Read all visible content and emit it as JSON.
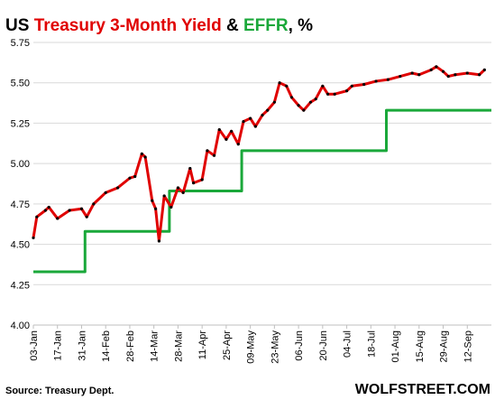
{
  "chart_data": {
    "type": "line",
    "title": [
      {
        "text": "US ",
        "color": "#000000"
      },
      {
        "text": "Treasury 3-Month  Yield",
        "color": "#e00000"
      },
      {
        "text": " & ",
        "color": "#000000"
      },
      {
        "text": "EFFR",
        "color": "#1aa83a"
      },
      {
        "text": ", %",
        "color": "#000000"
      }
    ],
    "source": "Source: Treasury Dept.",
    "watermark": "WOLFSTREET.COM",
    "xlim": [
      "03-Jan",
      "26-Sep"
    ],
    "xticks": [
      "03-Jan",
      "17-Jan",
      "31-Jan",
      "14-Feb",
      "28-Feb",
      "14-Mar",
      "28-Mar",
      "11-Apr",
      "25-Apr",
      "09-May",
      "23-May",
      "06-Jun",
      "20-Jun",
      "04-Jul",
      "18-Jul",
      "01-Aug",
      "15-Aug",
      "29-Aug",
      "12-Sep"
    ],
    "ylim": [
      4.0,
      5.75
    ],
    "yticks": [
      {
        "value": 4.0,
        "label": "4.00"
      },
      {
        "value": 4.25,
        "label": "4.25"
      },
      {
        "value": 4.5,
        "label": "4.50"
      },
      {
        "value": 4.75,
        "label": "4.75"
      },
      {
        "value": 5.0,
        "label": "5.00"
      },
      {
        "value": 5.25,
        "label": "5.25"
      },
      {
        "value": 5.5,
        "label": "5.50"
      },
      {
        "value": 5.75,
        "label": "5.75"
      }
    ],
    "grid": true,
    "series": [
      {
        "color": "#1aa83a",
        "step": true,
        "markers": false,
        "x": [
          "03-Jan",
          "02-Feb",
          "23-Mar",
          "04-May",
          "27-Jul",
          "26-Sep"
        ],
        "values": [
          4.33,
          4.58,
          4.83,
          5.08,
          5.33,
          5.33
        ]
      },
      {
        "color": "#e00000",
        "step": false,
        "markers": true,
        "x": [
          "03-Jan",
          "05-Jan",
          "10-Jan",
          "12-Jan",
          "17-Jan",
          "24-Jan",
          "31-Jan",
          "03-Feb",
          "07-Feb",
          "14-Feb",
          "21-Feb",
          "28-Feb",
          "03-Mar",
          "07-Mar",
          "09-Mar",
          "13-Mar",
          "15-Mar",
          "17-Mar",
          "20-Mar",
          "24-Mar",
          "28-Mar",
          "31-Mar",
          "04-Apr",
          "06-Apr",
          "11-Apr",
          "14-Apr",
          "18-Apr",
          "21-Apr",
          "25-Apr",
          "28-Apr",
          "02-May",
          "05-May",
          "09-May",
          "12-May",
          "16-May",
          "19-May",
          "23-May",
          "26-May",
          "30-May",
          "02-Jun",
          "06-Jun",
          "09-Jun",
          "13-Jun",
          "16-Jun",
          "20-Jun",
          "23-Jun",
          "27-Jun",
          "04-Jul",
          "07-Jul",
          "14-Jul",
          "21-Jul",
          "28-Jul",
          "04-Aug",
          "11-Aug",
          "15-Aug",
          "22-Aug",
          "25-Aug",
          "29-Aug",
          "01-Sep",
          "05-Sep",
          "12-Sep",
          "19-Sep",
          "22-Sep"
        ],
        "values": [
          4.54,
          4.67,
          4.71,
          4.73,
          4.66,
          4.71,
          4.72,
          4.67,
          4.75,
          4.82,
          4.85,
          4.91,
          4.92,
          5.06,
          5.04,
          4.77,
          4.72,
          4.52,
          4.8,
          4.73,
          4.85,
          4.82,
          4.97,
          4.88,
          4.9,
          5.08,
          5.05,
          5.21,
          5.15,
          5.2,
          5.12,
          5.26,
          5.28,
          5.23,
          5.3,
          5.33,
          5.38,
          5.5,
          5.48,
          5.41,
          5.36,
          5.33,
          5.38,
          5.4,
          5.48,
          5.43,
          5.43,
          5.45,
          5.48,
          5.49,
          5.51,
          5.52,
          5.54,
          5.56,
          5.55,
          5.58,
          5.6,
          5.57,
          5.54,
          5.55,
          5.56,
          5.55,
          5.58
        ]
      }
    ]
  }
}
